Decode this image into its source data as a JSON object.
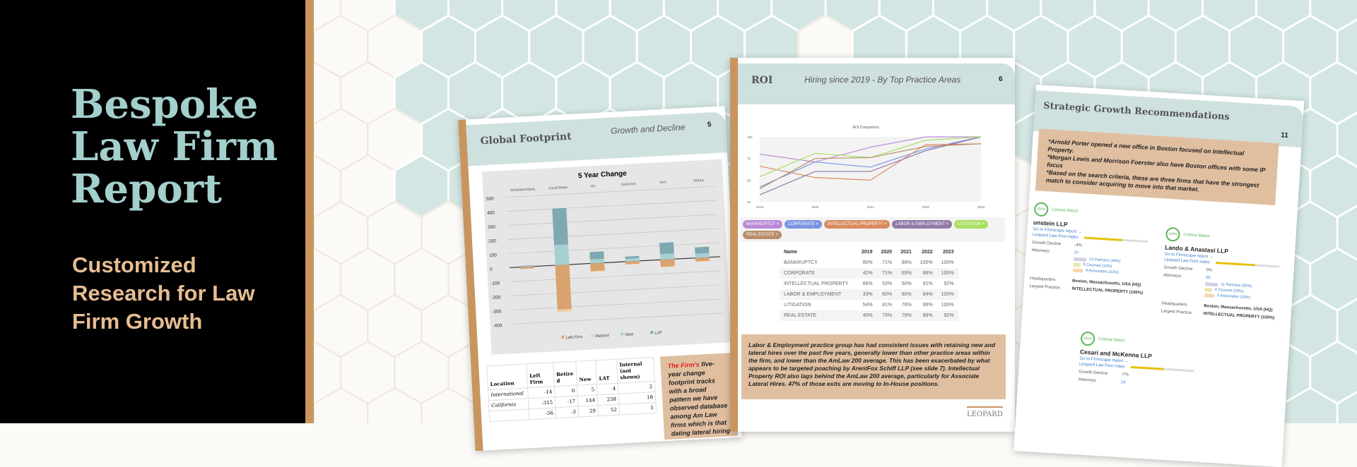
{
  "hero": {
    "title": "Bespoke Law Firm Report",
    "subtitle": "Customized Research for Law Firm Growth"
  },
  "colors": {
    "teal": "#a3cfcc",
    "tan": "#e6bd92",
    "stripe": "#c9955f",
    "header": "#cfe1df"
  },
  "page5": {
    "title": "Global Footprint",
    "subtitle": "Growth and Decline",
    "number": "5",
    "table": {
      "headers": [
        "Location",
        "Left Firm",
        "Retired",
        "New",
        "LAT",
        "Internal (not shown)"
      ],
      "rows": [
        [
          "International",
          "-14",
          "0",
          "5",
          "4",
          "2"
        ],
        [
          "California",
          "-315",
          "-17",
          "144",
          "258",
          "18"
        ],
        [
          "",
          "-56",
          "-3",
          "29",
          "52",
          "5"
        ]
      ]
    },
    "note": {
      "highlight": "The Firm's",
      "text": " five-year change footprint tracks with a broad pattern we have observed database among Am Law firms which is that dating lateral hiring is outp"
    }
  },
  "page6": {
    "title": "ROI",
    "subtitle": "Hiring since 2019 - By Top Practice Areas",
    "number": "6",
    "chips": [
      {
        "label": "BANKRUPTCY ×",
        "color": "#b98ad6"
      },
      {
        "label": "CORPORATE ×",
        "color": "#7b95e0"
      },
      {
        "label": "INTELLECTUAL PROPERTY ×",
        "color": "#d98b5f"
      },
      {
        "label": "LABOR & EMPLOYMENT ×",
        "color": "#917aa8"
      },
      {
        "label": "LITIGATION ×",
        "color": "#a8e060"
      },
      {
        "label": "REAL ESTATE ×",
        "color": "#b98e6c"
      }
    ],
    "table": {
      "headers": [
        "Name",
        "2019",
        "2020",
        "2021",
        "2022",
        "2023"
      ],
      "rows": [
        [
          "BANKRUPTCY",
          "80%",
          "71%",
          "88%",
          "100%",
          "100%"
        ],
        [
          "CORPORATE",
          "42%",
          "71%",
          "65%",
          "86%",
          "100%"
        ],
        [
          "INTELLECTUAL PROPERTY",
          "66%",
          "53%",
          "50%",
          "91%",
          "92%"
        ],
        [
          "LABOR & EMPLOYMENT",
          "33%",
          "60%",
          "60%",
          "84%",
          "100%"
        ],
        [
          "LITIGATION",
          "54%",
          "81%",
          "76%",
          "96%",
          "100%"
        ],
        [
          "REAL ESTATE",
          "40%",
          "75%",
          "76%",
          "89%",
          "92%"
        ]
      ]
    },
    "note": "Labor & Employment practice group has had consistent issues with retaining new and lateral hires over the past five years, generally lower than other practice areas within the firm, and lower than the AmLaw 200 average. This has been exacerbated by what appears to be targeted poaching by ArentFox Schiff LLP (see slide 7). Intellectual Property ROI also lags behind the AmLaw 200 average, particularly for Associate Lateral Hires. 47% of those exits are moving to In-House positions.",
    "logo": "LEOPARD"
  },
  "page11": {
    "title": "Strategic Growth Recommendations",
    "number": "11",
    "note": "*Arnold Porter opened a new office in Boston focused on Intellectual Property.\n*Morgan Lewis and Morrison Foerster also have Boston offices with some IP focus\n*Based on the search criteria, these are three firms that have the strongest match to consider acquiring to move into that market.",
    "firms": [
      {
        "match": "100%",
        "match_label": "Criteria Match",
        "name": "unstein LLP",
        "link": "Go to Firmscape report →",
        "index_label": "Leopard Law Firm Index",
        "index": 0.6,
        "growth_label": "Growth Decline",
        "growth": "-4%",
        "att_label": "Attorneys",
        "attorneys": "27",
        "partners": "13 Partners (48%)",
        "counsel": "5 Counsel (19%)",
        "associates": "9 Associates (33%)",
        "hq_label": "Headquarters",
        "hq": "Boston, Massachusetts, USA (HQ)",
        "lp_label": "Largest Practice",
        "lp": "INTELLECTUAL PROPERTY (100%)"
      },
      {
        "match": "100%",
        "match_label": "Criteria Match",
        "name": "Lando & Anastasi LLP",
        "link": "Go to Firmscape report →",
        "index_label": "Leopard Law Firm Index",
        "index": 0.63,
        "growth_label": "Growth Decline",
        "growth": "0%",
        "att_label": "Attorneys",
        "attorneys": "20",
        "partners": "11 Partners (55%)",
        "counsel": "4 Counsel (20%)",
        "associates": "5 Associates (25%)",
        "hq_label": "Headquarters",
        "hq": "Boston, Massachusetts, USA (HQ)",
        "lp_label": "Largest Practice",
        "lp": "INTELLECTUAL PROPERTY (100%)"
      },
      {
        "match": "100%",
        "match_label": "Criteria Match",
        "name": "Cesari and McKenna LLP",
        "link": "Go to Firmscape report →",
        "index_label": "Leopard Law Firm Index",
        "index": 0.52,
        "growth_label": "Growth Decline",
        "growth": "-7%",
        "att_label": "Attorneys",
        "attorneys": "14"
      }
    ]
  },
  "chart_data": [
    {
      "type": "bar",
      "title": "5 Year Change",
      "categories": [
        "INTERNATIONAL",
        "CALIFORNIA",
        "DC",
        "CHICAGO",
        "NYC",
        "TEXAS"
      ],
      "ylim": [
        -400,
        500
      ],
      "yticks": [
        "500",
        "400",
        "300",
        "200",
        "100",
        "0",
        "-100",
        "-200",
        "-300",
        "-400"
      ],
      "series": [
        {
          "name": "Left Firm",
          "color": "#d9a36f",
          "values": [
            -14,
            -315,
            -56,
            -20,
            -50,
            -25
          ]
        },
        {
          "name": "Retired",
          "color": "#f0cfa8",
          "values": [
            0,
            -17,
            -3,
            -2,
            -5,
            -3
          ]
        },
        {
          "name": "New",
          "color": "#a7cfd1",
          "values": [
            5,
            144,
            29,
            20,
            40,
            30
          ]
        },
        {
          "name": "LAT",
          "color": "#7fa8b2",
          "values": [
            4,
            258,
            52,
            15,
            80,
            45
          ]
        }
      ],
      "legend": "bottom",
      "grid": true
    },
    {
      "type": "line",
      "title": "ROI Comparison",
      "categories": [
        "2019",
        "2020",
        "2021",
        "2022",
        "2023"
      ],
      "ylim": [
        25,
        100
      ],
      "yticks": [
        "100",
        "75",
        "50",
        "25"
      ],
      "series": [
        {
          "name": "BANKRUPTCY",
          "color": "#b98ad6",
          "values": [
            80,
            71,
            88,
            100,
            100
          ]
        },
        {
          "name": "CORPORATE",
          "color": "#7b95e0",
          "values": [
            42,
            71,
            65,
            86,
            100
          ]
        },
        {
          "name": "INTELLECTUAL PROPERTY",
          "color": "#d98b5f",
          "values": [
            66,
            53,
            50,
            91,
            92
          ]
        },
        {
          "name": "LABOR & EMPLOYMENT",
          "color": "#917aa8",
          "values": [
            33,
            60,
            60,
            84,
            100
          ]
        },
        {
          "name": "LITIGATION",
          "color": "#a8e060",
          "values": [
            54,
            81,
            76,
            96,
            100
          ]
        },
        {
          "name": "REAL ESTATE",
          "color": "#b98e6c",
          "values": [
            40,
            75,
            76,
            89,
            92
          ]
        }
      ],
      "grid": true
    }
  ]
}
